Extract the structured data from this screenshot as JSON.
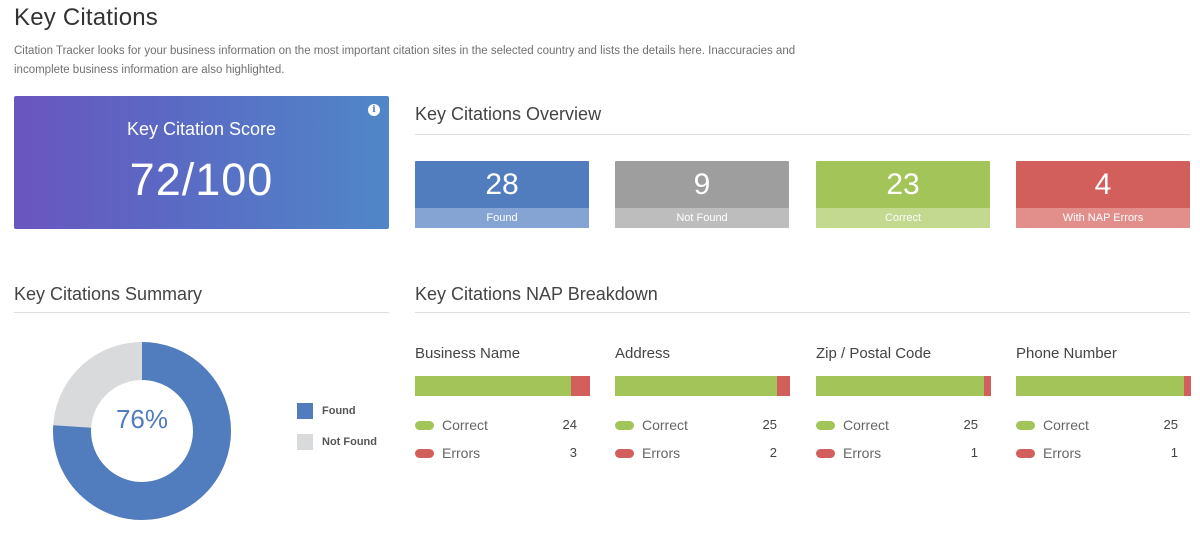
{
  "page": {
    "title": "Key Citations",
    "description": "Citation Tracker looks for your business information on the most important citation sites in the selected country and lists the details here. Inaccuracies and incomplete business information are also highlighted."
  },
  "score": {
    "label": "Key Citation Score",
    "value": "72/100",
    "info_icon": "info-icon"
  },
  "overview": {
    "title": "Key Citations Overview",
    "cards": [
      {
        "value": "28",
        "label": "Found",
        "color": "#517cbe"
      },
      {
        "value": "9",
        "label": "Not Found",
        "color": "#9e9e9e"
      },
      {
        "value": "23",
        "label": "Correct",
        "color": "#a3c459"
      },
      {
        "value": "4",
        "label": "With NAP Errors",
        "color": "#d25f5c"
      }
    ]
  },
  "summary": {
    "title": "Key Citations Summary",
    "percent_label": "76%",
    "found_fraction": 0.76,
    "legend": [
      {
        "label": "Found",
        "color": "#517cbe"
      },
      {
        "label": "Not Found",
        "color": "#d9dadb"
      }
    ]
  },
  "nap": {
    "title": "Key Citations NAP Breakdown",
    "correct_label": "Correct",
    "errors_label": "Errors",
    "colors": {
      "correct": "#a3c459",
      "errors": "#d25f5c"
    },
    "columns": [
      {
        "title": "Business Name",
        "correct": "24",
        "errors": "3"
      },
      {
        "title": "Address",
        "correct": "25",
        "errors": "2"
      },
      {
        "title": "Zip / Postal Code",
        "correct": "25",
        "errors": "1"
      },
      {
        "title": "Phone Number",
        "correct": "25",
        "errors": "1"
      }
    ]
  }
}
